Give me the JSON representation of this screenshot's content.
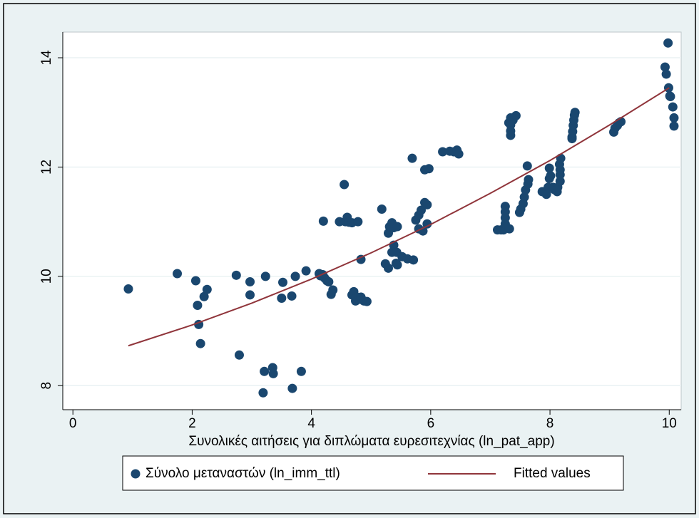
{
  "chart_data": {
    "type": "scatter",
    "x_label": "Συνολικές αιτήσεις για διπλώματα ευρεσιτεχνίας (ln_pat_app)",
    "xlim": [
      -0.17,
      10.2
    ],
    "ylim": [
      7.56,
      14.47
    ],
    "xticks": [
      0,
      2,
      4,
      6,
      8,
      10
    ],
    "yticks": [
      8,
      10,
      12,
      14
    ],
    "grid": true,
    "legend": "bottom",
    "series": [
      {
        "name": "Σύνολο μεταναστών (ln_imm_ttl)",
        "type": "scatter",
        "color": "#1a476f",
        "x": [
          0.93,
          1.75,
          2.06,
          2.09,
          2.11,
          2.14,
          2.2,
          2.25,
          2.74,
          2.79,
          2.97,
          2.97,
          3.21,
          3.19,
          3.23,
          3.35,
          3.36,
          3.5,
          3.52,
          3.67,
          3.68,
          3.73,
          3.83,
          3.91,
          4.13,
          4.15,
          4.19,
          4.22,
          4.26,
          4.29,
          4.2,
          4.33,
          4.36,
          4.47,
          4.55,
          4.57,
          4.6,
          4.63,
          4.68,
          4.78,
          4.68,
          4.71,
          4.74,
          4.76,
          4.8,
          4.83,
          4.88,
          4.93,
          4.83,
          5.18,
          5.24,
          5.29,
          5.29,
          5.31,
          5.35,
          5.38,
          5.44,
          5.35,
          5.38,
          5.43,
          5.42,
          5.44,
          5.52,
          5.61,
          5.71,
          5.69,
          5.75,
          5.8,
          5.84,
          5.8,
          5.87,
          5.9,
          5.94,
          5.94,
          5.9,
          5.97,
          6.2,
          6.32,
          6.39,
          6.44,
          6.47,
          7.12,
          7.18,
          7.22,
          7.25,
          7.25,
          7.25,
          7.25,
          7.32,
          7.31,
          7.34,
          7.38,
          7.43,
          7.34,
          7.34,
          7.34,
          7.49,
          7.51,
          7.55,
          7.57,
          7.59,
          7.63,
          7.62,
          7.64,
          7.87,
          7.94,
          7.97,
          7.99,
          8.01,
          8.05,
          8.07,
          8.12,
          8.13,
          8.17,
          8.17,
          8.17,
          8.16,
          8.18,
          7.99,
          8.37,
          8.38,
          8.39,
          8.4,
          8.41,
          8.42,
          8.37,
          9.07,
          9.09,
          9.13,
          9.16,
          9.19,
          9.93,
          9.95,
          9.99,
          10.01,
          10.02,
          10.06,
          10.08,
          10.08,
          9.98
        ],
        "values": [
          9.77,
          10.05,
          9.92,
          9.47,
          9.12,
          8.77,
          9.63,
          9.76,
          10.02,
          8.56,
          9.9,
          9.66,
          8.26,
          7.87,
          10.0,
          8.33,
          8.22,
          9.6,
          9.89,
          9.64,
          7.95,
          10.0,
          8.26,
          10.1,
          10.05,
          10.01,
          10.03,
          9.97,
          9.92,
          9.9,
          11.01,
          9.67,
          9.75,
          11.0,
          11.68,
          11.0,
          11.08,
          10.99,
          10.98,
          11.0,
          9.66,
          9.72,
          9.55,
          9.62,
          9.58,
          9.62,
          9.55,
          9.54,
          10.31,
          11.23,
          10.23,
          10.15,
          10.79,
          10.91,
          10.98,
          10.89,
          10.91,
          10.44,
          10.57,
          10.44,
          10.24,
          10.21,
          10.36,
          10.32,
          10.3,
          12.16,
          11.03,
          11.12,
          11.21,
          10.87,
          10.83,
          11.35,
          11.31,
          10.96,
          11.95,
          11.97,
          12.28,
          12.29,
          12.28,
          12.31,
          12.24,
          10.85,
          10.85,
          10.85,
          10.96,
          11.07,
          11.18,
          11.28,
          10.87,
          12.81,
          12.9,
          12.86,
          12.94,
          12.77,
          12.66,
          12.58,
          11.17,
          11.23,
          11.33,
          11.45,
          11.58,
          11.69,
          12.02,
          11.77,
          11.55,
          11.5,
          11.63,
          11.79,
          11.84,
          11.63,
          11.59,
          11.55,
          11.63,
          11.74,
          11.86,
          11.95,
          12.05,
          12.16,
          11.98,
          12.55,
          12.65,
          12.76,
          12.86,
          12.95,
          13.0,
          12.52,
          12.64,
          12.71,
          12.76,
          12.81,
          12.83,
          13.83,
          13.7,
          13.45,
          13.3,
          13.29,
          13.1,
          12.9,
          12.75,
          14.27
        ]
      },
      {
        "name": "Fitted values",
        "type": "line",
        "color": "#90353b",
        "x": [
          0.93,
          2,
          3,
          4,
          5,
          6,
          7,
          8,
          9,
          10
        ],
        "values": [
          8.73,
          9.11,
          9.51,
          9.95,
          10.43,
          10.95,
          11.52,
          12.12,
          12.77,
          13.45
        ]
      }
    ]
  }
}
